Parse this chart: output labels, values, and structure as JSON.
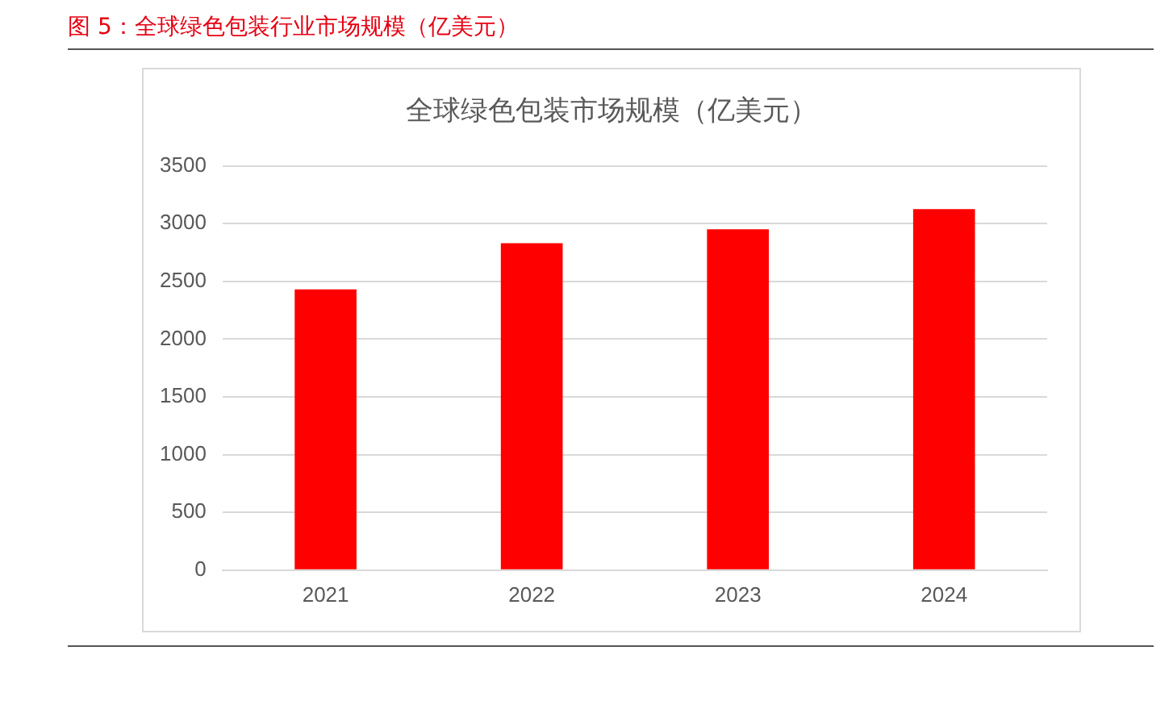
{
  "chart_data": {
    "type": "bar",
    "title": "图 5：全球绿色包装行业市场规模（亿美元）",
    "subtitle": "全球绿色包装市场规模（亿美元）",
    "categories": [
      "2021",
      "2022",
      "2023",
      "2024"
    ],
    "values": [
      2430,
      2830,
      2950,
      3125
    ],
    "color": "#ff0000",
    "ylim": [
      0,
      3500
    ],
    "yticks": [
      0,
      500,
      1000,
      1500,
      2000,
      2500,
      3000,
      3500
    ],
    "grid": "y",
    "legend": false
  }
}
